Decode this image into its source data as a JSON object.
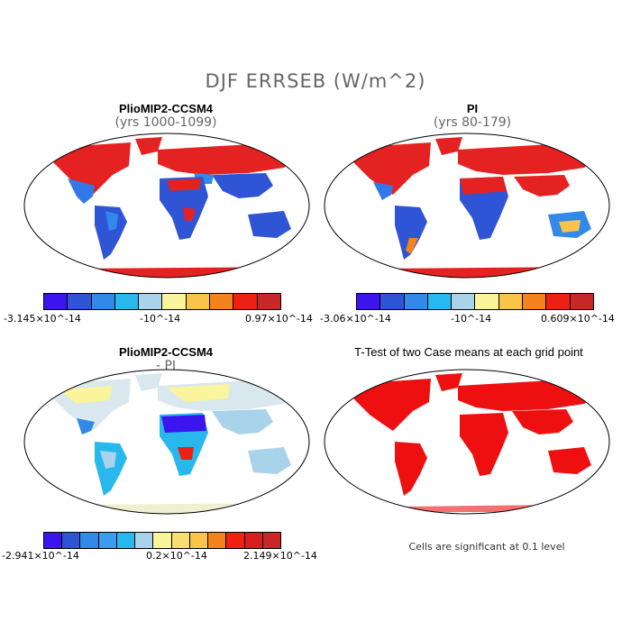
{
  "title": "DJF ERRSEB (W/m^2)",
  "panels": {
    "top_left": {
      "title": "PlioMIP2-CCSM4",
      "subtitle": "(yrs 1000-1099)"
    },
    "top_right": {
      "title": "PI",
      "subtitle": "(yrs 80-179)"
    },
    "bottom_left": {
      "title": "PlioMIP2-CCSM4",
      "subtitle": "- PI"
    },
    "bottom_right": {
      "title": "T-Test of two Case means at each grid point",
      "note": "Cells are significant at 0.1 level"
    }
  },
  "colorbars": {
    "cb1": {
      "labels": [
        "-3.145×10^-14",
        "-10^-14",
        "0.97×10^-14"
      ],
      "colors": [
        "#3b14ee",
        "#2f54d6",
        "#3289e8",
        "#28b8ee",
        "#a9d3ea",
        "#faf49c",
        "#f8c54a",
        "#f3831c",
        "#ee2014",
        "#c82828"
      ]
    },
    "cb2": {
      "labels": [
        "-3.06×10^-14",
        "-10^-14",
        "0.609×10^-14"
      ],
      "colors": [
        "#3b14ee",
        "#2f54d6",
        "#3289e8",
        "#28b8ee",
        "#a9d3ea",
        "#faf49c",
        "#f8c54a",
        "#f3831c",
        "#ee2014",
        "#c82828"
      ]
    },
    "cb3": {
      "labels": [
        "-2.941×10^-14",
        "0.2×10^-14",
        "2.149×10^-14"
      ],
      "colors": [
        "#3b14ee",
        "#2f54d6",
        "#3289e8",
        "#3b9bee",
        "#28b8ee",
        "#a9d3ea",
        "#faf49c",
        "#f8e070",
        "#f8c54a",
        "#f3831c",
        "#ee2014",
        "#d61e1e",
        "#c82828"
      ]
    }
  }
}
